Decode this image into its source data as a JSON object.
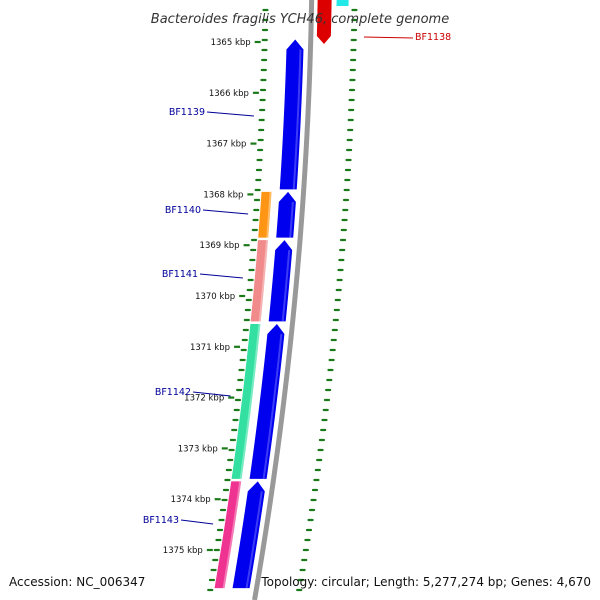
{
  "title": "Bacteroides fragilis YCH46, complete genome",
  "footer": {
    "accession": "Accession: NC_006347",
    "topology": "Topology: circular; Length: 5,277,274 bp; Genes: 4,670"
  },
  "chart_data": {
    "type": "genome-map",
    "units": "kbp",
    "kbp_ticks": [
      "1365 kbp",
      "1366 kbp",
      "1367 kbp",
      "1368 kbp",
      "1369 kbp",
      "1370 kbp",
      "1371 kbp",
      "1372 kbp",
      "1373 kbp",
      "1374 kbp",
      "1375 kbp"
    ],
    "tick_values": [
      1365,
      1366,
      1367,
      1368,
      1369,
      1370,
      1371,
      1372,
      1373,
      1374,
      1375
    ],
    "genes": [
      {
        "label": "BF1138",
        "color": "#dd0000",
        "strand": "+",
        "start": 1363.6,
        "end": 1364.8
      },
      {
        "label": "BF1139",
        "color": "#0000ee",
        "strand": "+",
        "start": 1364.95,
        "end": 1367.9
      },
      {
        "label": "BF1140",
        "color": "#0000ee",
        "strand": "+",
        "start": 1367.95,
        "end": 1368.85
      },
      {
        "label": "BF1141",
        "color": "#0000ee",
        "strand": "+",
        "start": 1368.9,
        "end": 1370.5
      },
      {
        "label": "BF1142",
        "color": "#0000ee",
        "strand": "+",
        "start": 1370.55,
        "end": 1373.6
      },
      {
        "label": "BF1143",
        "color": "#0000ee",
        "strand": "+",
        "start": 1373.65,
        "end": 1375.75
      }
    ],
    "domains": [
      {
        "color": "#ff8c00",
        "start": 1367.95,
        "end": 1368.85
      },
      {
        "color": "#f08080",
        "start": 1368.9,
        "end": 1370.5
      },
      {
        "color": "#22dd99",
        "start": 1370.55,
        "end": 1373.6
      },
      {
        "color": "#ee2288",
        "start": 1373.65,
        "end": 1375.75
      }
    ],
    "colors": {
      "forward_gene": "#0000ee",
      "reverse_gene": "#dd0000",
      "label_forward": "#000099",
      "label_reverse": "#cc0000",
      "backbone": "#999999",
      "dotted_ring": "#1a7a1a",
      "cyan_feature": "#22e8e8"
    }
  }
}
